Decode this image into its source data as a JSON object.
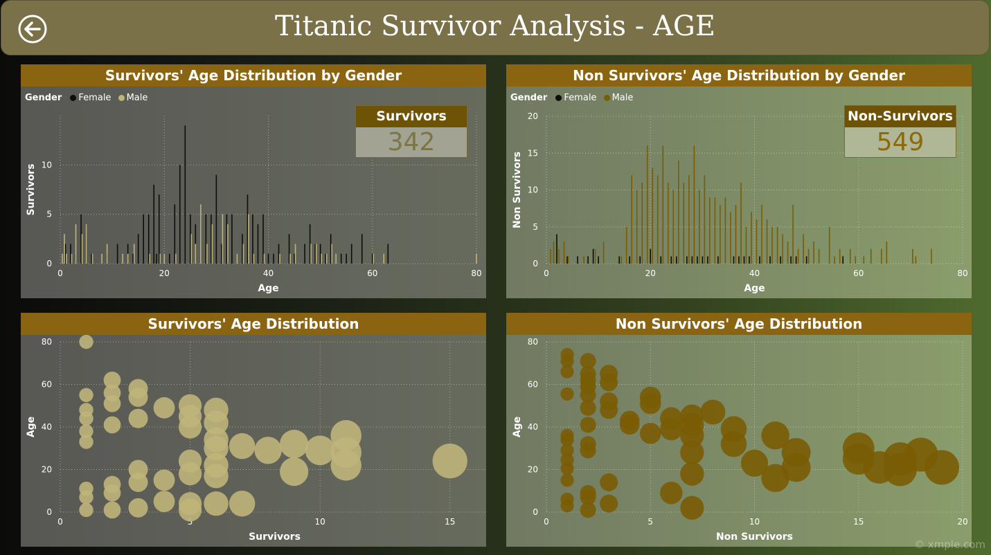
{
  "header": {
    "title": "Titanic Survivor Analysis - AGE",
    "back_icon": "back-arrow-circle-icon"
  },
  "colors": {
    "female": "#0d0d0b",
    "male_survivor": "#bfb47a",
    "male_nonsurvivor": "#7a5c04",
    "header_bg": "#7b7148",
    "panel_title_bg": "#8a6410"
  },
  "cards": {
    "survivors": {
      "label": "Survivors",
      "value": "342"
    },
    "non_survivors": {
      "label": "Non-Survivors",
      "value": "549"
    }
  },
  "legend": {
    "title": "Gender",
    "female": "Female",
    "male": "Male"
  },
  "watermark": "© xmple.com",
  "chart_data": [
    {
      "id": "survivors_hist",
      "type": "bar",
      "title": "Survivors' Age Distribution by Gender",
      "xlabel": "Age",
      "ylabel": "Survivors",
      "xlim": [
        0,
        80
      ],
      "ylim": [
        0,
        15
      ],
      "xticks": [
        0,
        20,
        40,
        60,
        80
      ],
      "yticks": [
        0,
        5,
        10
      ],
      "legend": "top-left",
      "grid": true,
      "series": [
        {
          "name": "Female",
          "x": [
            1,
            2,
            3,
            4,
            5,
            6,
            9,
            11,
            13,
            14,
            15,
            16,
            17,
            18,
            18.5,
            19,
            21,
            22,
            23,
            24,
            25,
            26,
            27,
            28,
            29,
            30,
            31,
            32,
            33,
            35,
            36,
            37,
            38,
            39,
            40,
            41,
            42,
            44,
            45,
            47,
            48,
            49,
            50,
            51,
            52,
            54,
            55,
            56,
            58,
            60,
            63
          ],
          "values": [
            2,
            2,
            1,
            5,
            4,
            1,
            1,
            2,
            2,
            1,
            3,
            5,
            5,
            8,
            1,
            7,
            1,
            6,
            10,
            14,
            5,
            4,
            5,
            5,
            5,
            9,
            2,
            5,
            5,
            3,
            7,
            5,
            4,
            5,
            1,
            1,
            2,
            3,
            1,
            2,
            4,
            2,
            2,
            1,
            3,
            1,
            1,
            2,
            3,
            1,
            2
          ]
        },
        {
          "name": "Male",
          "x": [
            0.4,
            0.8,
            1.2,
            2.2,
            3,
            4.2,
            5,
            6.2,
            8,
            9,
            12,
            13,
            14.2,
            17.2,
            19.2,
            20,
            22.2,
            25.2,
            26,
            27,
            28.2,
            29.2,
            31.2,
            32.2,
            34,
            35.2,
            36.2,
            37.2,
            39.2,
            42.2,
            44.2,
            45.2,
            48.2,
            49.2,
            50.2,
            51.2,
            52.2,
            53,
            60.2,
            62.2,
            80
          ],
          "values": [
            1,
            3,
            1,
            1,
            4,
            3,
            4,
            1,
            1,
            2,
            1,
            1,
            2,
            1,
            1,
            1,
            1,
            3,
            2,
            6,
            2,
            4,
            5,
            4,
            1,
            2,
            5,
            1,
            1,
            1,
            1,
            2,
            2,
            2,
            1,
            1,
            2,
            1,
            1,
            1,
            1
          ]
        }
      ]
    },
    {
      "id": "nonsurvivors_hist",
      "type": "bar",
      "title": "Non Survivors' Age Distribution by Gender",
      "xlabel": "Age",
      "ylabel": "Non Survivors",
      "xlim": [
        0,
        80
      ],
      "ylim": [
        0,
        20
      ],
      "xticks": [
        0,
        20,
        40,
        60,
        80
      ],
      "yticks": [
        0,
        5,
        10,
        15,
        20
      ],
      "legend": "top-left",
      "grid": true,
      "series": [
        {
          "name": "Female",
          "x": [
            2,
            4,
            6,
            8,
            9,
            10,
            14,
            16,
            18,
            20,
            22,
            24,
            25,
            27,
            28,
            29,
            30,
            31,
            33,
            36,
            37,
            38,
            39,
            41,
            43,
            45,
            47,
            48,
            50,
            57
          ],
          "values": [
            4,
            1,
            1,
            1,
            2,
            1,
            1,
            1,
            1,
            2,
            1,
            1,
            1,
            1,
            1,
            1,
            1,
            1,
            1,
            1,
            1,
            1,
            1,
            1,
            1,
            1,
            1,
            1,
            1,
            1
          ]
        },
        {
          "name": "Male",
          "x": [
            0.8,
            1.4,
            2.4,
            3.4,
            4.2,
            7.2,
            9.4,
            11,
            14.4,
            15.4,
            16.4,
            17.4,
            18.4,
            19.4,
            20.4,
            21.4,
            22.4,
            23.4,
            24.4,
            25.4,
            26.4,
            27.4,
            28.4,
            29.4,
            30.4,
            31.4,
            32.4,
            33.4,
            34.4,
            35.4,
            36.4,
            37.4,
            38.4,
            39.4,
            40.4,
            41.4,
            42.4,
            43.4,
            44.4,
            45.4,
            46.4,
            47.4,
            48.4,
            49.4,
            50.4,
            51.4,
            52.4,
            54.4,
            55.4,
            56.4,
            58.4,
            59.4,
            61,
            62.4,
            64.4,
            65.4,
            70.4,
            71,
            74
          ],
          "values": [
            2,
            3,
            2,
            3,
            1,
            1,
            2,
            3,
            1,
            5,
            12,
            10,
            11,
            16,
            13,
            12,
            16,
            11,
            10,
            14,
            11,
            12,
            16,
            10,
            12,
            9,
            9,
            8,
            9,
            7,
            8,
            11,
            5,
            7,
            6,
            8,
            6,
            5,
            5,
            4,
            3,
            8,
            2,
            4,
            2,
            3,
            2,
            5,
            1,
            2,
            2,
            1,
            1,
            2,
            2,
            3,
            2,
            1,
            2
          ]
        }
      ]
    },
    {
      "id": "survivors_bubble",
      "type": "scatter",
      "title": "Survivors' Age Distribution",
      "xlabel": "Survivors",
      "ylabel": "Age",
      "xlim": [
        0,
        16.5
      ],
      "ylim": [
        0,
        80
      ],
      "xticks": [
        0,
        5,
        10,
        15
      ],
      "yticks": [
        0,
        20,
        40,
        60,
        80
      ],
      "grid": true,
      "points": [
        {
          "x": 1,
          "y": 80
        },
        {
          "x": 1,
          "y": 55
        },
        {
          "x": 1,
          "y": 48
        },
        {
          "x": 1,
          "y": 44
        },
        {
          "x": 1,
          "y": 38
        },
        {
          "x": 1,
          "y": 33
        },
        {
          "x": 1,
          "y": 11
        },
        {
          "x": 1,
          "y": 7
        },
        {
          "x": 1,
          "y": 1
        },
        {
          "x": 2,
          "y": 62
        },
        {
          "x": 2,
          "y": 56
        },
        {
          "x": 2,
          "y": 51
        },
        {
          "x": 2,
          "y": 41
        },
        {
          "x": 2,
          "y": 13
        },
        {
          "x": 2,
          "y": 9
        },
        {
          "x": 2,
          "y": 1
        },
        {
          "x": 3,
          "y": 58
        },
        {
          "x": 3,
          "y": 54
        },
        {
          "x": 3,
          "y": 44
        },
        {
          "x": 3,
          "y": 20
        },
        {
          "x": 3,
          "y": 14
        },
        {
          "x": 3,
          "y": 2
        },
        {
          "x": 4,
          "y": 49
        },
        {
          "x": 4,
          "y": 15
        },
        {
          "x": 4,
          "y": 5
        },
        {
          "x": 5,
          "y": 50
        },
        {
          "x": 5,
          "y": 45
        },
        {
          "x": 5,
          "y": 40
        },
        {
          "x": 5,
          "y": 24
        },
        {
          "x": 5,
          "y": 18
        },
        {
          "x": 5,
          "y": 4
        },
        {
          "x": 5,
          "y": 1
        },
        {
          "x": 6,
          "y": 48
        },
        {
          "x": 6,
          "y": 42
        },
        {
          "x": 6,
          "y": 34
        },
        {
          "x": 6,
          "y": 30
        },
        {
          "x": 6,
          "y": 22
        },
        {
          "x": 6,
          "y": 17
        },
        {
          "x": 6,
          "y": 4
        },
        {
          "x": 7,
          "y": 31
        },
        {
          "x": 7,
          "y": 4
        },
        {
          "x": 8,
          "y": 29
        },
        {
          "x": 9,
          "y": 32
        },
        {
          "x": 9,
          "y": 19
        },
        {
          "x": 10,
          "y": 29
        },
        {
          "x": 11,
          "y": 36
        },
        {
          "x": 11,
          "y": 28
        },
        {
          "x": 11,
          "y": 22
        },
        {
          "x": 15,
          "y": 24
        }
      ]
    },
    {
      "id": "nonsurvivors_bubble",
      "type": "scatter",
      "title": "Non Survivors' Age Distribution",
      "xlabel": "Non Survivors",
      "ylabel": "Age",
      "xlim": [
        0,
        20
      ],
      "ylim": [
        0,
        80
      ],
      "xticks": [
        0,
        5,
        10,
        15,
        20
      ],
      "yticks": [
        0,
        20,
        40,
        60,
        80
      ],
      "grid": true,
      "points": [
        {
          "x": 1,
          "y": 74
        },
        {
          "x": 1,
          "y": 71
        },
        {
          "x": 1,
          "y": 66
        },
        {
          "x": 1,
          "y": 55.5
        },
        {
          "x": 1,
          "y": 36
        },
        {
          "x": 1,
          "y": 34
        },
        {
          "x": 1,
          "y": 29
        },
        {
          "x": 1,
          "y": 24.5
        },
        {
          "x": 1,
          "y": 20.5
        },
        {
          "x": 1,
          "y": 15
        },
        {
          "x": 1,
          "y": 6
        },
        {
          "x": 1,
          "y": 3
        },
        {
          "x": 2,
          "y": 71
        },
        {
          "x": 2,
          "y": 65
        },
        {
          "x": 2,
          "y": 62
        },
        {
          "x": 2,
          "y": 59
        },
        {
          "x": 2,
          "y": 55
        },
        {
          "x": 2,
          "y": 49
        },
        {
          "x": 2,
          "y": 41
        },
        {
          "x": 2,
          "y": 32
        },
        {
          "x": 2,
          "y": 29
        },
        {
          "x": 2,
          "y": 9
        },
        {
          "x": 2,
          "y": 7
        },
        {
          "x": 2,
          "y": 1
        },
        {
          "x": 3,
          "y": 65
        },
        {
          "x": 3,
          "y": 61
        },
        {
          "x": 3,
          "y": 52
        },
        {
          "x": 3,
          "y": 48
        },
        {
          "x": 3,
          "y": 14
        },
        {
          "x": 3,
          "y": 4
        },
        {
          "x": 4,
          "y": 43
        },
        {
          "x": 4,
          "y": 41
        },
        {
          "x": 5,
          "y": 54
        },
        {
          "x": 5,
          "y": 51
        },
        {
          "x": 5,
          "y": 37
        },
        {
          "x": 6,
          "y": 44
        },
        {
          "x": 6,
          "y": 39
        },
        {
          "x": 6,
          "y": 9
        },
        {
          "x": 7,
          "y": 45
        },
        {
          "x": 7,
          "y": 41
        },
        {
          "x": 7,
          "y": 36
        },
        {
          "x": 7,
          "y": 28
        },
        {
          "x": 7,
          "y": 18
        },
        {
          "x": 7,
          "y": 2
        },
        {
          "x": 8,
          "y": 47
        },
        {
          "x": 9,
          "y": 39
        },
        {
          "x": 9,
          "y": 32
        },
        {
          "x": 10,
          "y": 23
        },
        {
          "x": 11,
          "y": 16
        },
        {
          "x": 11,
          "y": 36
        },
        {
          "x": 12,
          "y": 28
        },
        {
          "x": 12,
          "y": 21
        },
        {
          "x": 15,
          "y": 30
        },
        {
          "x": 15,
          "y": 25
        },
        {
          "x": 16,
          "y": 21
        },
        {
          "x": 17,
          "y": 20
        },
        {
          "x": 17,
          "y": 25
        },
        {
          "x": 18,
          "y": 27
        },
        {
          "x": 19,
          "y": 21
        }
      ]
    }
  ]
}
